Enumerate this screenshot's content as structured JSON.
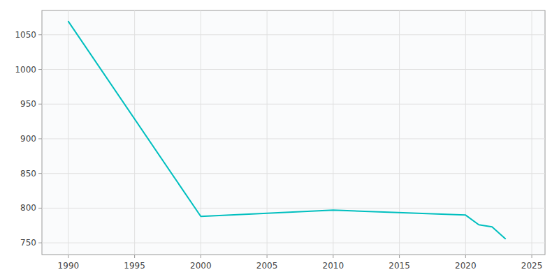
{
  "chart_data": {
    "type": "line",
    "x": [
      1990,
      2000,
      2010,
      2020,
      2021,
      2022,
      2023
    ],
    "values": [
      1069,
      788,
      797,
      790,
      776,
      773,
      756
    ],
    "color": "#00BFBF",
    "xlim": [
      1988,
      2026
    ],
    "ylim": [
      733,
      1085
    ],
    "xticks": [
      1990,
      1995,
      2000,
      2005,
      2010,
      2015,
      2020,
      2025
    ],
    "yticks": [
      750,
      800,
      850,
      900,
      950,
      1000,
      1050
    ],
    "grid": true
  }
}
